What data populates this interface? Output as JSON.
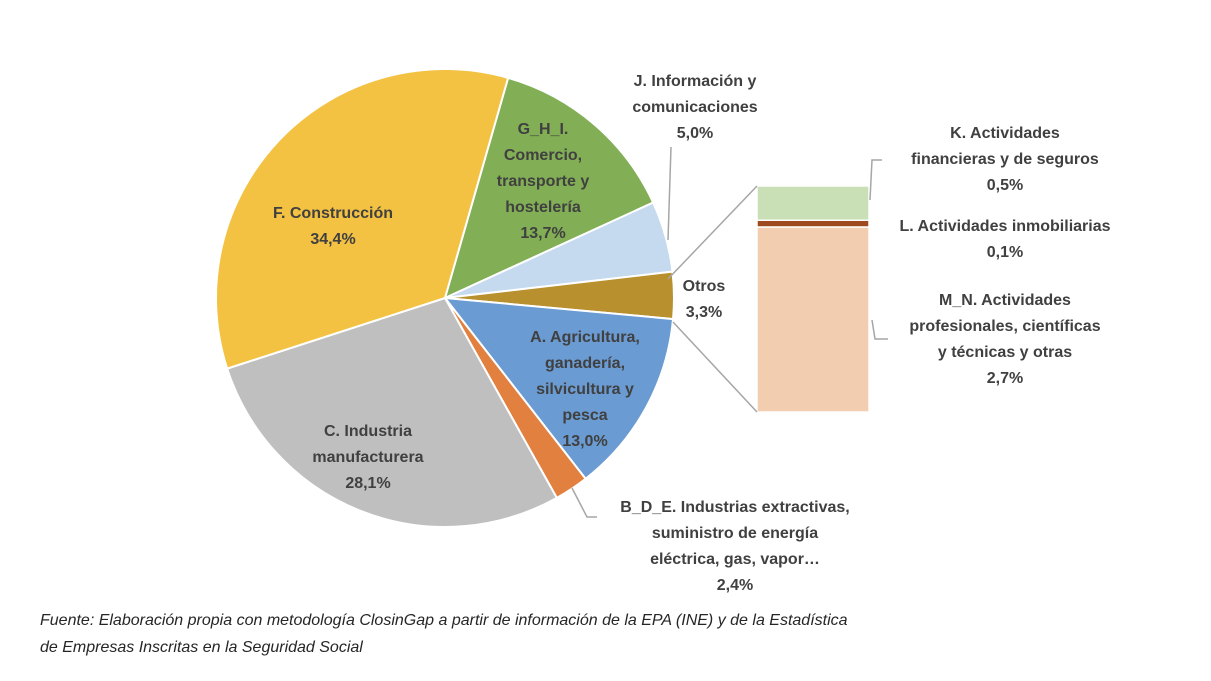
{
  "chart_data": {
    "type": "pie",
    "categories": [
      "G_H_I.\nComercio,\ntransporte y\nhostelería",
      "J. Información y\ncomunicaciones",
      "Otros",
      "A. Agricultura,\nganadería,\nsilvicultura y\npesca",
      "B_D_E. Industrias extractivas,\nsuministro de energía\neléctrica, gas, vapor…",
      "C. Industria\nmanufacturera",
      "F. Construcción"
    ],
    "values": [
      13.7,
      5.0,
      3.3,
      13.0,
      2.4,
      28.1,
      34.4
    ],
    "value_labels": [
      "13,7%",
      "5,0%",
      "3,3%",
      "13,0%",
      "2,4%",
      "28,1%",
      "34,4%"
    ],
    "colors": [
      "#82AE55",
      "#C5D9EF",
      "#B8902E",
      "#6A9BD2",
      "#E2803F",
      "#BFBFBF",
      "#F4C242"
    ],
    "breakdown": {
      "categories": [
        "K. Actividades\nfinancieras y de seguros",
        "L. Actividades inmobiliarias",
        "M_N. Actividades\nprofesionales, científicas\ny técnicas y otras"
      ],
      "values": [
        0.5,
        0.1,
        2.7
      ],
      "value_labels": [
        "0,5%",
        "0,1%",
        "2,7%"
      ],
      "colors": [
        "#C9DFB6",
        "#9E4A1E",
        "#F2CDB0"
      ]
    },
    "source": [
      "Fuente: Elaboración propia con metodología ClosinGap a partir de información de la EPA (INE) y de la Estadística",
      "de Empresas Inscritas en la Seguridad Social"
    ]
  }
}
